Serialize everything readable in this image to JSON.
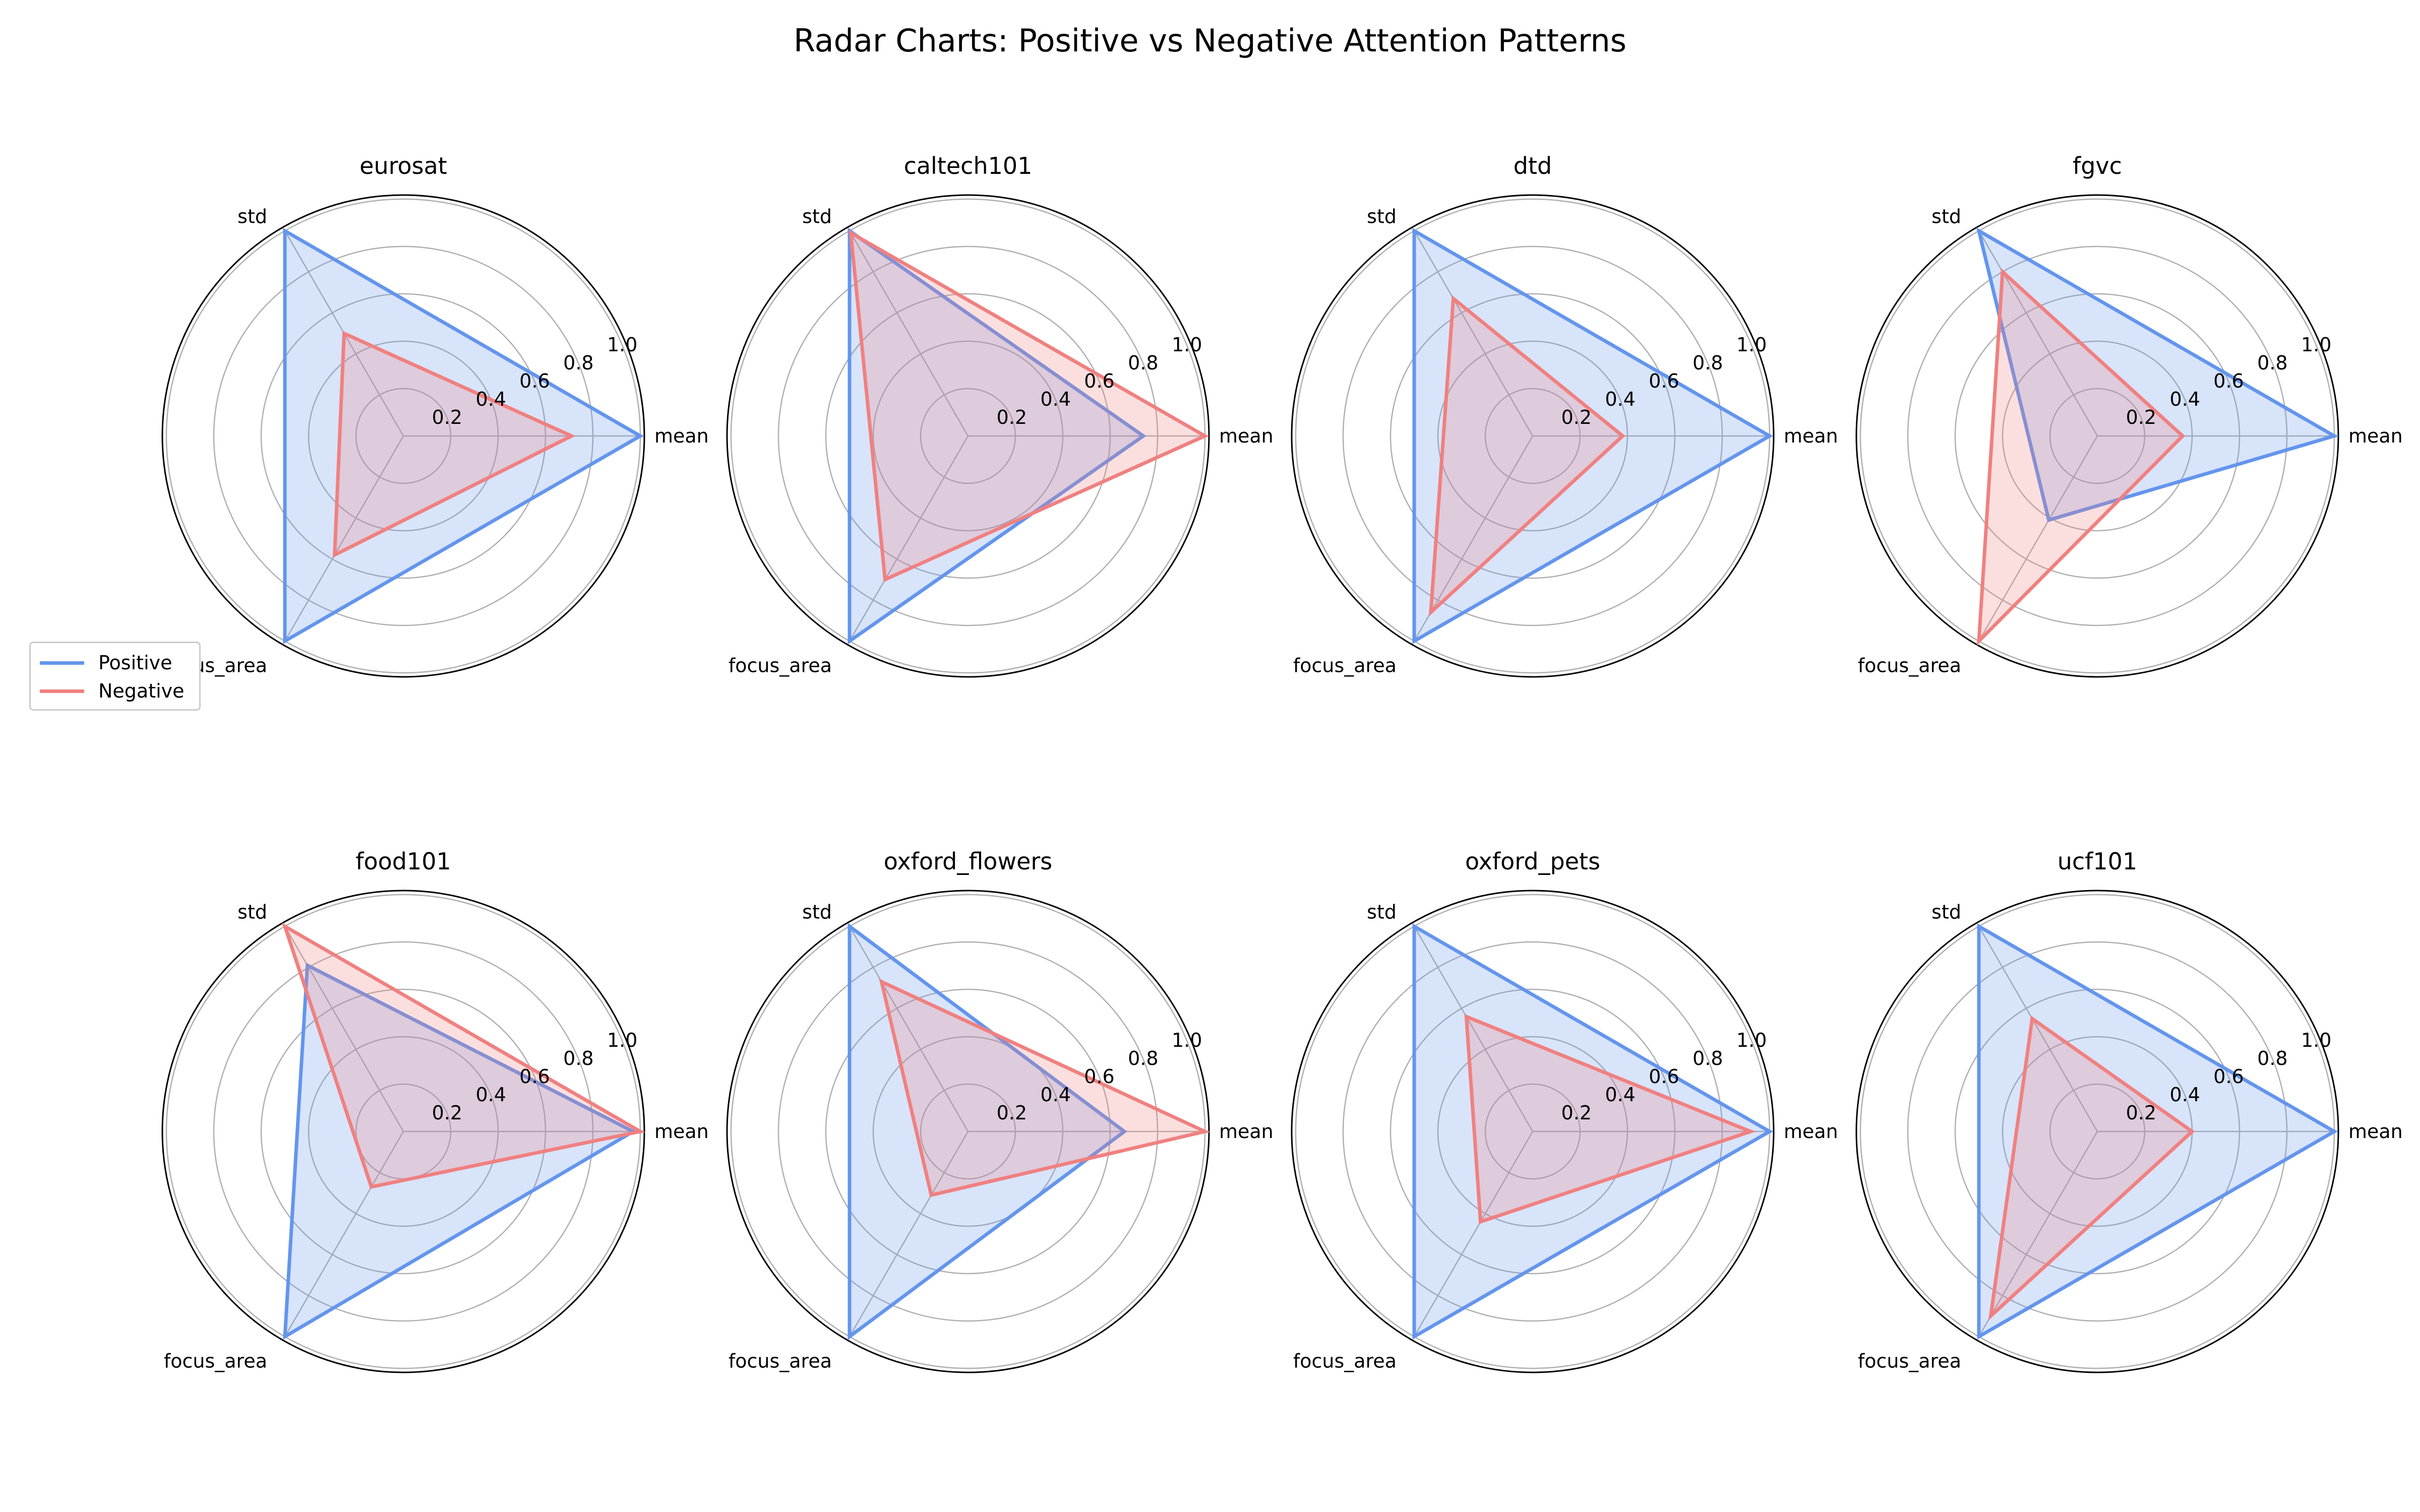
{
  "title": "Radar Charts: Positive vs Negative Attention Patterns",
  "legend": {
    "items": [
      {
        "label": "Positive",
        "color": "#6495ed"
      },
      {
        "label": "Negative",
        "color": "#f08080"
      }
    ]
  },
  "chart_data": [
    {
      "type": "radar",
      "title": "eurosat",
      "axes": [
        "mean",
        "std",
        "focus_area"
      ],
      "rlim": [
        0,
        1.0
      ],
      "rticks": [
        "0.2",
        "0.4",
        "0.6",
        "0.8",
        "1.0"
      ],
      "series": [
        {
          "name": "Positive",
          "values": [
            1.0,
            1.0,
            1.0
          ]
        },
        {
          "name": "Negative",
          "values": [
            0.71,
            0.5,
            0.58
          ]
        }
      ]
    },
    {
      "type": "radar",
      "title": "caltech101",
      "axes": [
        "mean",
        "std",
        "focus_area"
      ],
      "rlim": [
        0,
        1.0
      ],
      "rticks": [
        "0.2",
        "0.4",
        "0.6",
        "0.8",
        "1.0"
      ],
      "series": [
        {
          "name": "Positive",
          "values": [
            0.74,
            1.0,
            1.0
          ]
        },
        {
          "name": "Negative",
          "values": [
            1.0,
            0.99,
            0.7
          ]
        }
      ]
    },
    {
      "type": "radar",
      "title": "dtd",
      "axes": [
        "mean",
        "std",
        "focus_area"
      ],
      "rlim": [
        0,
        1.0
      ],
      "rticks": [
        "0.2",
        "0.4",
        "0.6",
        "0.8",
        "1.0"
      ],
      "series": [
        {
          "name": "Positive",
          "values": [
            1.0,
            1.0,
            1.0
          ]
        },
        {
          "name": "Negative",
          "values": [
            0.38,
            0.67,
            0.86
          ]
        }
      ]
    },
    {
      "type": "radar",
      "title": "fgvc",
      "axes": [
        "mean",
        "std",
        "focus_area"
      ],
      "rlim": [
        0,
        1.0
      ],
      "rticks": [
        "0.2",
        "0.4",
        "0.6",
        "0.8",
        "1.0"
      ],
      "series": [
        {
          "name": "Positive",
          "values": [
            1.0,
            1.0,
            0.41
          ]
        },
        {
          "name": "Negative",
          "values": [
            0.36,
            0.8,
            1.0
          ]
        }
      ]
    },
    {
      "type": "radar",
      "title": "food101",
      "axes": [
        "mean",
        "std",
        "focus_area"
      ],
      "rlim": [
        0,
        1.0
      ],
      "rticks": [
        "0.2",
        "0.4",
        "0.6",
        "0.8",
        "1.0"
      ],
      "series": [
        {
          "name": "Positive",
          "values": [
            0.97,
            0.81,
            1.0
          ]
        },
        {
          "name": "Negative",
          "values": [
            1.0,
            1.0,
            0.27
          ]
        }
      ]
    },
    {
      "type": "radar",
      "title": "oxford_flowers",
      "axes": [
        "mean",
        "std",
        "focus_area"
      ],
      "rlim": [
        0,
        1.0
      ],
      "rticks": [
        "0.2",
        "0.4",
        "0.6",
        "0.8",
        "1.0"
      ],
      "series": [
        {
          "name": "Positive",
          "values": [
            0.66,
            1.0,
            1.0
          ]
        },
        {
          "name": "Negative",
          "values": [
            1.0,
            0.73,
            0.31
          ]
        }
      ]
    },
    {
      "type": "radar",
      "title": "oxford_pets",
      "axes": [
        "mean",
        "std",
        "focus_area"
      ],
      "rlim": [
        0,
        1.0
      ],
      "rticks": [
        "0.2",
        "0.4",
        "0.6",
        "0.8",
        "1.0"
      ],
      "series": [
        {
          "name": "Positive",
          "values": [
            1.0,
            1.0,
            1.0
          ]
        },
        {
          "name": "Negative",
          "values": [
            0.92,
            0.56,
            0.44
          ]
        }
      ]
    },
    {
      "type": "radar",
      "title": "ucf101",
      "axes": [
        "mean",
        "std",
        "focus_area"
      ],
      "rlim": [
        0,
        1.0
      ],
      "rticks": [
        "0.2",
        "0.4",
        "0.6",
        "0.8",
        "1.0"
      ],
      "series": [
        {
          "name": "Positive",
          "values": [
            1.0,
            1.0,
            1.0
          ]
        },
        {
          "name": "Negative",
          "values": [
            0.4,
            0.55,
            0.9
          ]
        }
      ]
    }
  ]
}
